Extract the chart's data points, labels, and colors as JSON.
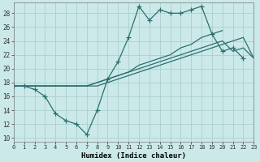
{
  "xlabel": "Humidex (Indice chaleur)",
  "bg_color": "#cce9e9",
  "grid_color": "#aacfcf",
  "line_color": "#2a7070",
  "x_ticks": [
    0,
    1,
    2,
    3,
    4,
    5,
    6,
    7,
    8,
    9,
    10,
    11,
    12,
    13,
    14,
    15,
    16,
    17,
    18,
    19,
    20,
    21,
    22,
    23
  ],
  "y_ticks": [
    10,
    12,
    14,
    16,
    18,
    20,
    22,
    24,
    26,
    28
  ],
  "xlim": [
    0,
    23
  ],
  "ylim": [
    9.5,
    29.5
  ],
  "series1_x": [
    0,
    1,
    2,
    3,
    4,
    5,
    6,
    7,
    8,
    9,
    10,
    11,
    12,
    13,
    14,
    15,
    16,
    17,
    18,
    19,
    20,
    21,
    22
  ],
  "series1_y": [
    17.5,
    17.5,
    17.0,
    16.0,
    13.5,
    12.5,
    12.0,
    10.5,
    14.0,
    18.5,
    21.0,
    24.5,
    29.0,
    27.0,
    28.5,
    28.0,
    28.0,
    28.5,
    29.0,
    25.0,
    22.5,
    23.0,
    21.5
  ],
  "series2_x": [
    0,
    1,
    2,
    3,
    4,
    5,
    6,
    7,
    8,
    9,
    10,
    11,
    12,
    13,
    14,
    15,
    16,
    17,
    18,
    19,
    20,
    21,
    22,
    23
  ],
  "series2_y": [
    17.5,
    17.5,
    17.5,
    17.5,
    17.5,
    17.5,
    17.5,
    17.5,
    18.0,
    18.5,
    19.0,
    19.5,
    20.0,
    20.5,
    21.0,
    21.5,
    22.0,
    22.5,
    23.0,
    23.5,
    24.0,
    22.5,
    23.0,
    21.5
  ],
  "series3_x": [
    0,
    1,
    2,
    3,
    4,
    5,
    6,
    7,
    8,
    9,
    10,
    11,
    12,
    13,
    14,
    15,
    16,
    17,
    18,
    19,
    20
  ],
  "series3_y": [
    17.5,
    17.5,
    17.5,
    17.5,
    17.5,
    17.5,
    17.5,
    17.5,
    18.0,
    18.5,
    19.0,
    19.5,
    20.5,
    21.0,
    21.5,
    22.0,
    23.0,
    23.5,
    24.5,
    25.0,
    25.5
  ],
  "series4_x": [
    0,
    1,
    2,
    3,
    4,
    5,
    6,
    7,
    8,
    9,
    10,
    11,
    12,
    13,
    14,
    15,
    16,
    17,
    18,
    19,
    20,
    21,
    22,
    23
  ],
  "series4_y": [
    17.5,
    17.5,
    17.5,
    17.5,
    17.5,
    17.5,
    17.5,
    17.5,
    17.5,
    18.0,
    18.5,
    19.0,
    19.5,
    20.0,
    20.5,
    21.0,
    21.5,
    22.0,
    22.5,
    23.0,
    23.5,
    24.0,
    24.5,
    21.5
  ]
}
